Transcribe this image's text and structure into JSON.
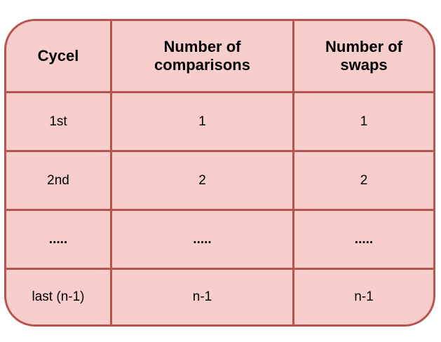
{
  "table": {
    "headers": [
      "Cycel",
      "Number of\ncomparisons",
      "Number of\nswaps"
    ],
    "rows": [
      [
        "1st",
        "1",
        "1"
      ],
      [
        "2nd",
        "2",
        "2"
      ],
      [
        ".....",
        ".....",
        "....."
      ],
      [
        "last (n-1)",
        "n-1",
        "n-1"
      ]
    ]
  },
  "colors": {
    "fill": "#f8cecc",
    "stroke": "#b85450",
    "text": "#000000"
  }
}
